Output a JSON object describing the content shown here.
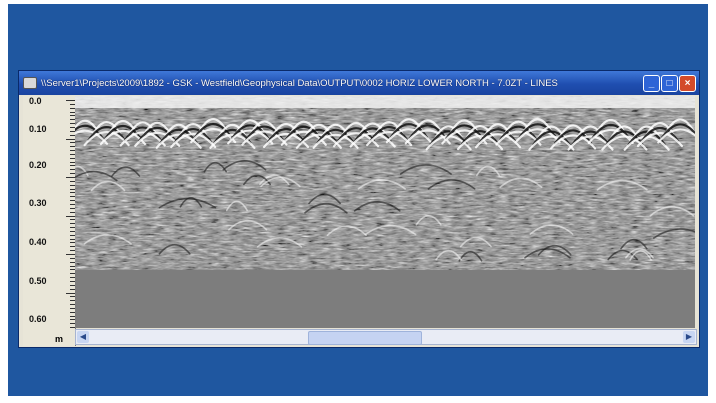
{
  "window": {
    "title": "\\\\Server1\\Projects\\2009\\1892 - GSK - Westfield\\Geophysical Data\\OUTPUT\\0002 HORIZ LOWER NORTH - 7.0ZT - LINES"
  },
  "title_buttons": {
    "minimize": "_",
    "maximize": "□",
    "close": "×"
  },
  "ruler": {
    "ticks": [
      "0.0",
      "0.10",
      "0.20",
      "0.30",
      "0.40",
      "0.50",
      "0.60"
    ],
    "unit": "m"
  },
  "scrollbar": {
    "left_arrow": "◀",
    "right_arrow": "▶"
  },
  "colors": {
    "background": "#1f57a0",
    "titlebar": "#1f4eb0",
    "panel": "#e6e3d6"
  },
  "icons": [
    "app-icon",
    "minimize-icon",
    "maximize-icon",
    "close-icon"
  ]
}
